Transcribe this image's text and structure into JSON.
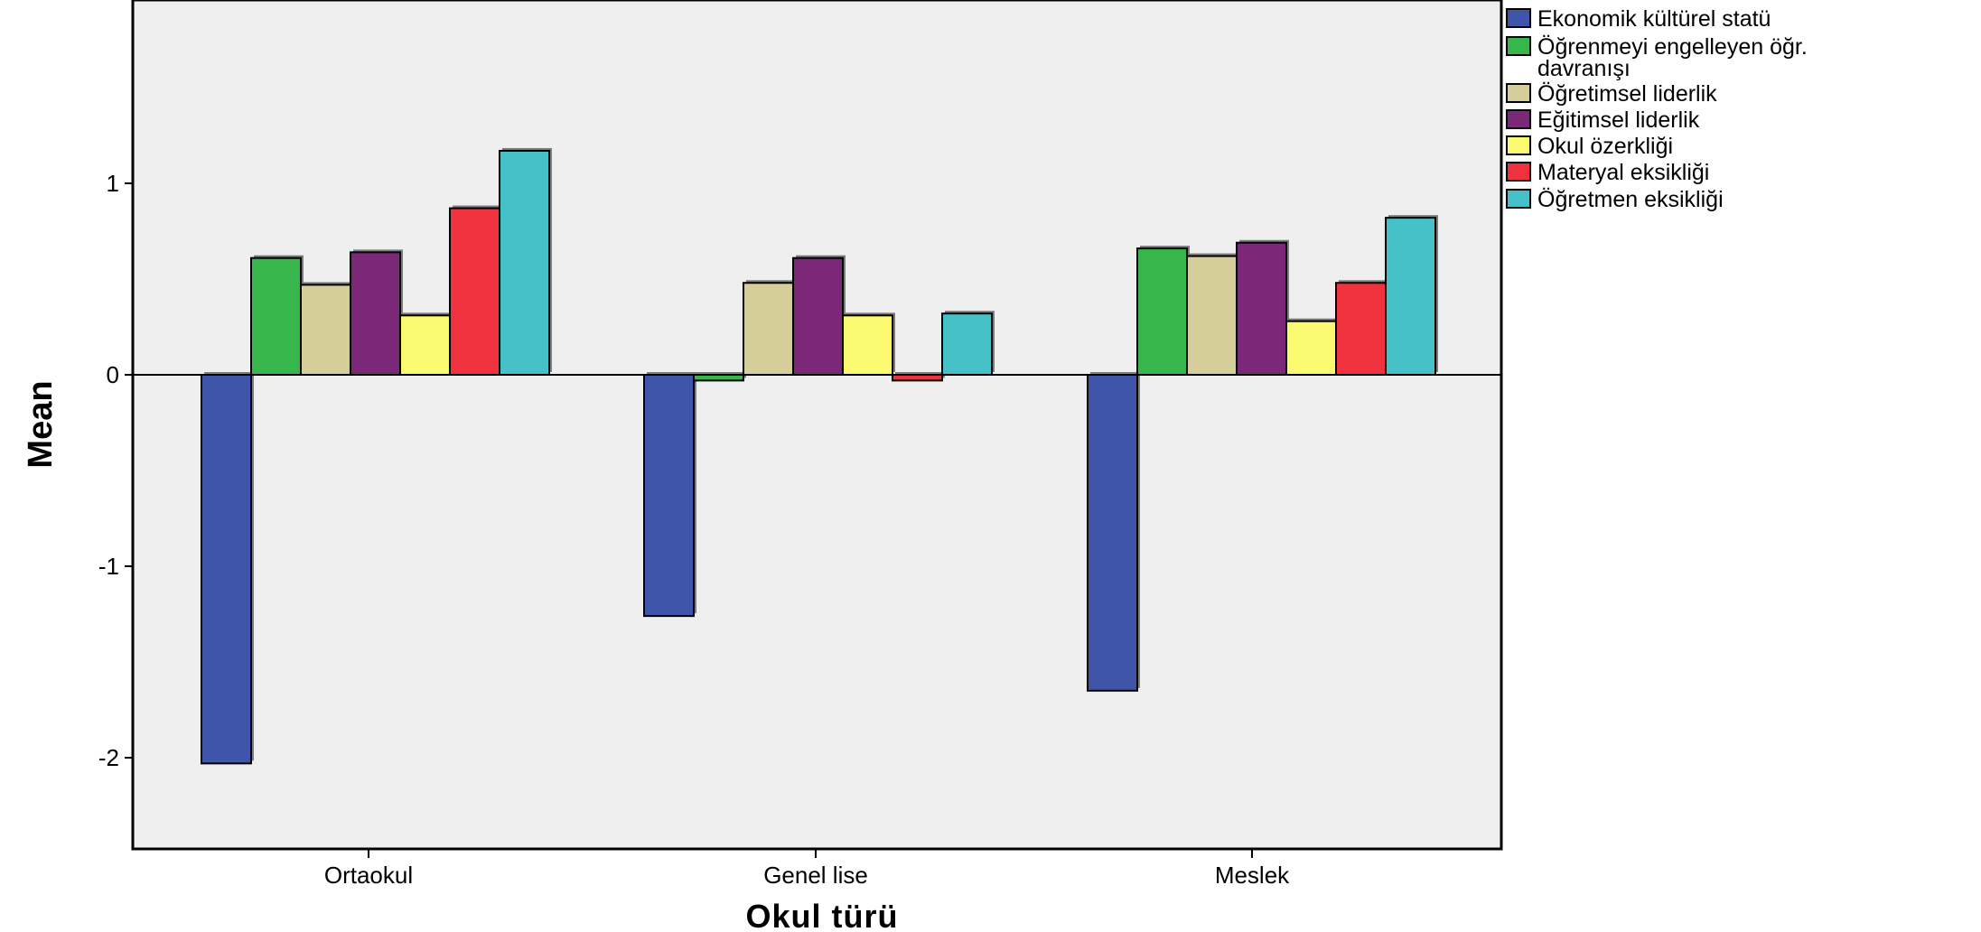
{
  "chart_data": {
    "type": "bar",
    "xlabel": "Okul türü",
    "ylabel": "Mean",
    "categories": [
      "Ortaokul",
      "Genel lise",
      "Meslek"
    ],
    "ylim": [
      -2.5,
      2.0
    ],
    "yticks": [
      1,
      0,
      -1,
      -2
    ],
    "grid": false,
    "legend_position": "right",
    "series": [
      {
        "name": "Ekonomik kültürel statü",
        "color": "#3f55a9",
        "values": [
          -2.03,
          -1.26,
          -1.65
        ]
      },
      {
        "name": "Öğrenmeyi engelleyen öğr. davranışı",
        "color": "#36b64b",
        "values": [
          0.61,
          -0.03,
          0.66
        ]
      },
      {
        "name": "Öğretimsel liderlik",
        "color": "#d5cd9a",
        "values": [
          0.47,
          0.48,
          0.62
        ]
      },
      {
        "name": "Eğitimsel liderlik",
        "color": "#7b2879",
        "values": [
          0.64,
          0.61,
          0.69
        ]
      },
      {
        "name": "Okul özerkliği",
        "color": "#fbf970",
        "values": [
          0.31,
          0.31,
          0.28
        ]
      },
      {
        "name": "Materyal eksikliği",
        "color": "#ef323d",
        "values": [
          0.87,
          -0.03,
          0.48
        ]
      },
      {
        "name": "Öğretmen eksikliği",
        "color": "#47c1c8",
        "values": [
          1.17,
          0.32,
          0.82
        ]
      }
    ]
  }
}
